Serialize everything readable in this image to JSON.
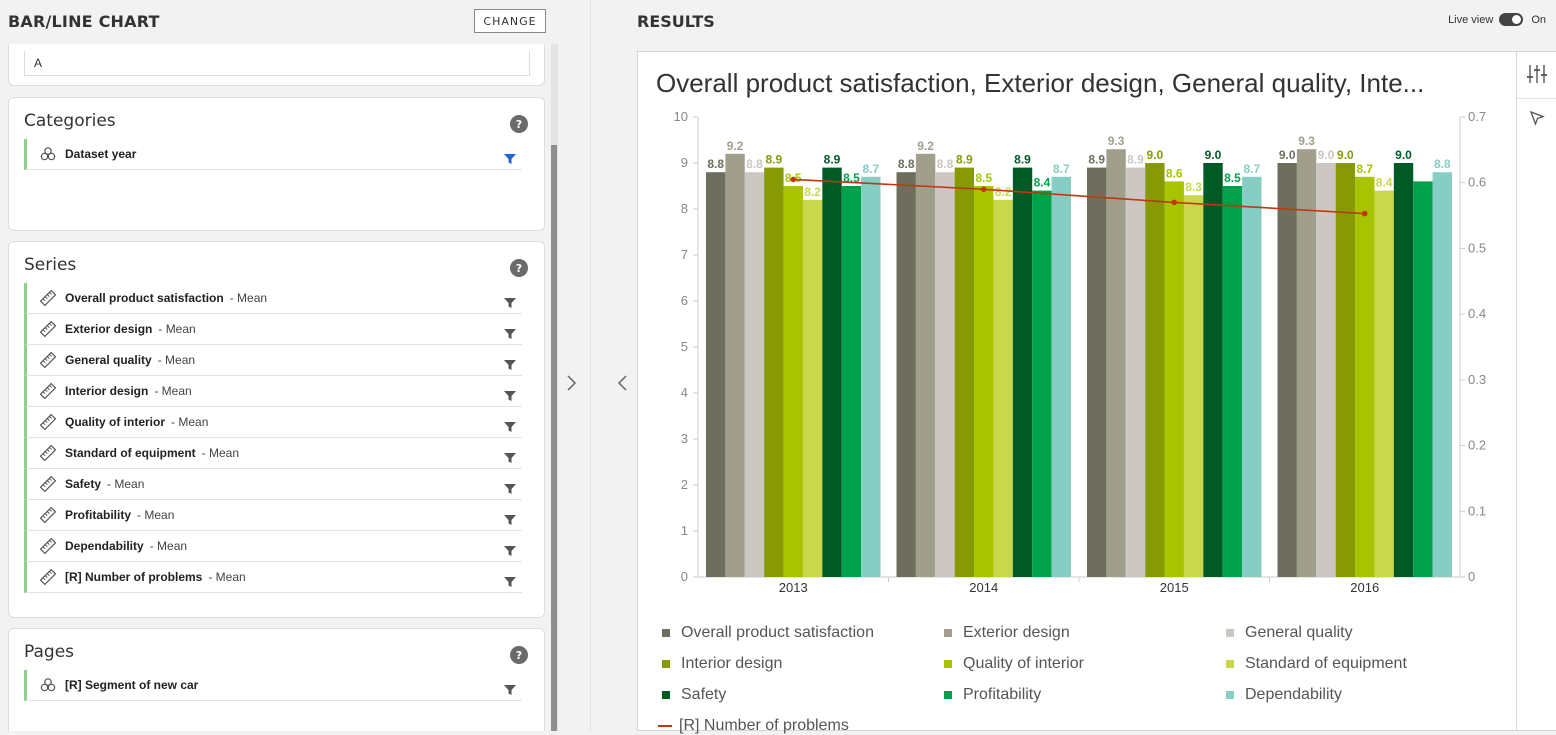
{
  "left_panel": {
    "title": "BAR/LINE CHART",
    "change_label": "CHANGE",
    "top_input_value": "A",
    "categories": {
      "title": "Categories",
      "help": "?",
      "items": [
        {
          "name": "Dataset year",
          "agg": ""
        }
      ]
    },
    "series": {
      "title": "Series",
      "help": "?",
      "items": [
        {
          "name": "Overall product satisfaction",
          "agg": "- Mean"
        },
        {
          "name": "Exterior design",
          "agg": "- Mean"
        },
        {
          "name": "General quality",
          "agg": "- Mean"
        },
        {
          "name": "Interior design",
          "agg": "- Mean"
        },
        {
          "name": "Quality of interior",
          "agg": "- Mean"
        },
        {
          "name": "Standard of equipment",
          "agg": "- Mean"
        },
        {
          "name": "Safety",
          "agg": "- Mean"
        },
        {
          "name": "Profitability",
          "agg": "- Mean"
        },
        {
          "name": "Dependability",
          "agg": "- Mean"
        },
        {
          "name": "[R] Number of problems",
          "agg": "- Mean"
        }
      ]
    },
    "pages": {
      "title": "Pages",
      "help": "?",
      "items": [
        {
          "name": "[R] Segment of new car",
          "agg": ""
        }
      ]
    }
  },
  "right_panel": {
    "title": "RESULTS",
    "live_view_label": "Live view",
    "live_view_state": "On"
  },
  "colors": {
    "Overall product satisfaction": "#6e6e5e",
    "Exterior design": "#a19f8c",
    "General quality": "#cdc7c3",
    "Interior design": "#879a06",
    "Quality of interior": "#a8c300",
    "Standard of equipment": "#c8d84a",
    "Safety": "#005a26",
    "Profitability": "#00a14b",
    "Dependability": "#86cec3",
    "[R] Number of problems": "#c0380f"
  },
  "chart_data": {
    "type": "bar",
    "title": "Overall product satisfaction, Exterior design, General quality, Inte...",
    "categories": [
      "2013",
      "2014",
      "2015",
      "2016"
    ],
    "ylim": [
      0,
      10
    ],
    "y_ticks": [
      "0",
      "1",
      "2",
      "3",
      "4",
      "5",
      "6",
      "7",
      "8",
      "9",
      "10"
    ],
    "y2lim": [
      0,
      0.7
    ],
    "y2_ticks": [
      "0",
      "0.1",
      "0.2",
      "0.3",
      "0.4",
      "0.5",
      "0.6",
      "0.7"
    ],
    "grid": false,
    "legend_position": "bottom",
    "series": [
      {
        "name": "Overall product satisfaction",
        "values": [
          8.8,
          8.8,
          8.9,
          9.0
        ],
        "labels": [
          "8.8",
          "8.8",
          "8.9",
          "9.0"
        ]
      },
      {
        "name": "Exterior design",
        "values": [
          9.2,
          9.2,
          9.3,
          9.3
        ],
        "labels": [
          "9.2",
          "9.2",
          "9.3",
          "9.3"
        ]
      },
      {
        "name": "General quality",
        "values": [
          8.8,
          8.8,
          8.9,
          9.0
        ],
        "labels": [
          "8.8",
          "8.8",
          "8.9",
          "9.0"
        ]
      },
      {
        "name": "Interior design",
        "values": [
          8.9,
          8.9,
          9.0,
          9.0
        ],
        "labels": [
          "8.9",
          "8.9",
          "9.0",
          "9.0"
        ]
      },
      {
        "name": "Quality of interior",
        "values": [
          8.5,
          8.5,
          8.6,
          8.7
        ],
        "labels": [
          "8.5",
          "8.5",
          "8.6",
          "8.7"
        ]
      },
      {
        "name": "Standard of equipment",
        "values": [
          8.2,
          8.2,
          8.3,
          8.4
        ],
        "labels": [
          "8.2",
          "8.2",
          "8.3",
          "8.4"
        ]
      },
      {
        "name": "Safety",
        "values": [
          8.9,
          8.9,
          9.0,
          9.0
        ],
        "labels": [
          "8.9",
          "8.9",
          "9.0",
          "9.0"
        ]
      },
      {
        "name": "Profitability",
        "values": [
          8.5,
          8.4,
          8.5,
          8.6
        ],
        "labels": [
          "8.5",
          "8.4",
          "8.5",
          ""
        ]
      },
      {
        "name": "Dependability",
        "values": [
          8.7,
          8.7,
          8.7,
          8.8
        ],
        "labels": [
          "8.7",
          "8.7",
          "8.7",
          "8.8"
        ]
      }
    ],
    "line_series": {
      "name": "[R] Number of problems",
      "axis": "right",
      "values": [
        0.605,
        0.59,
        0.57,
        0.553
      ]
    }
  }
}
